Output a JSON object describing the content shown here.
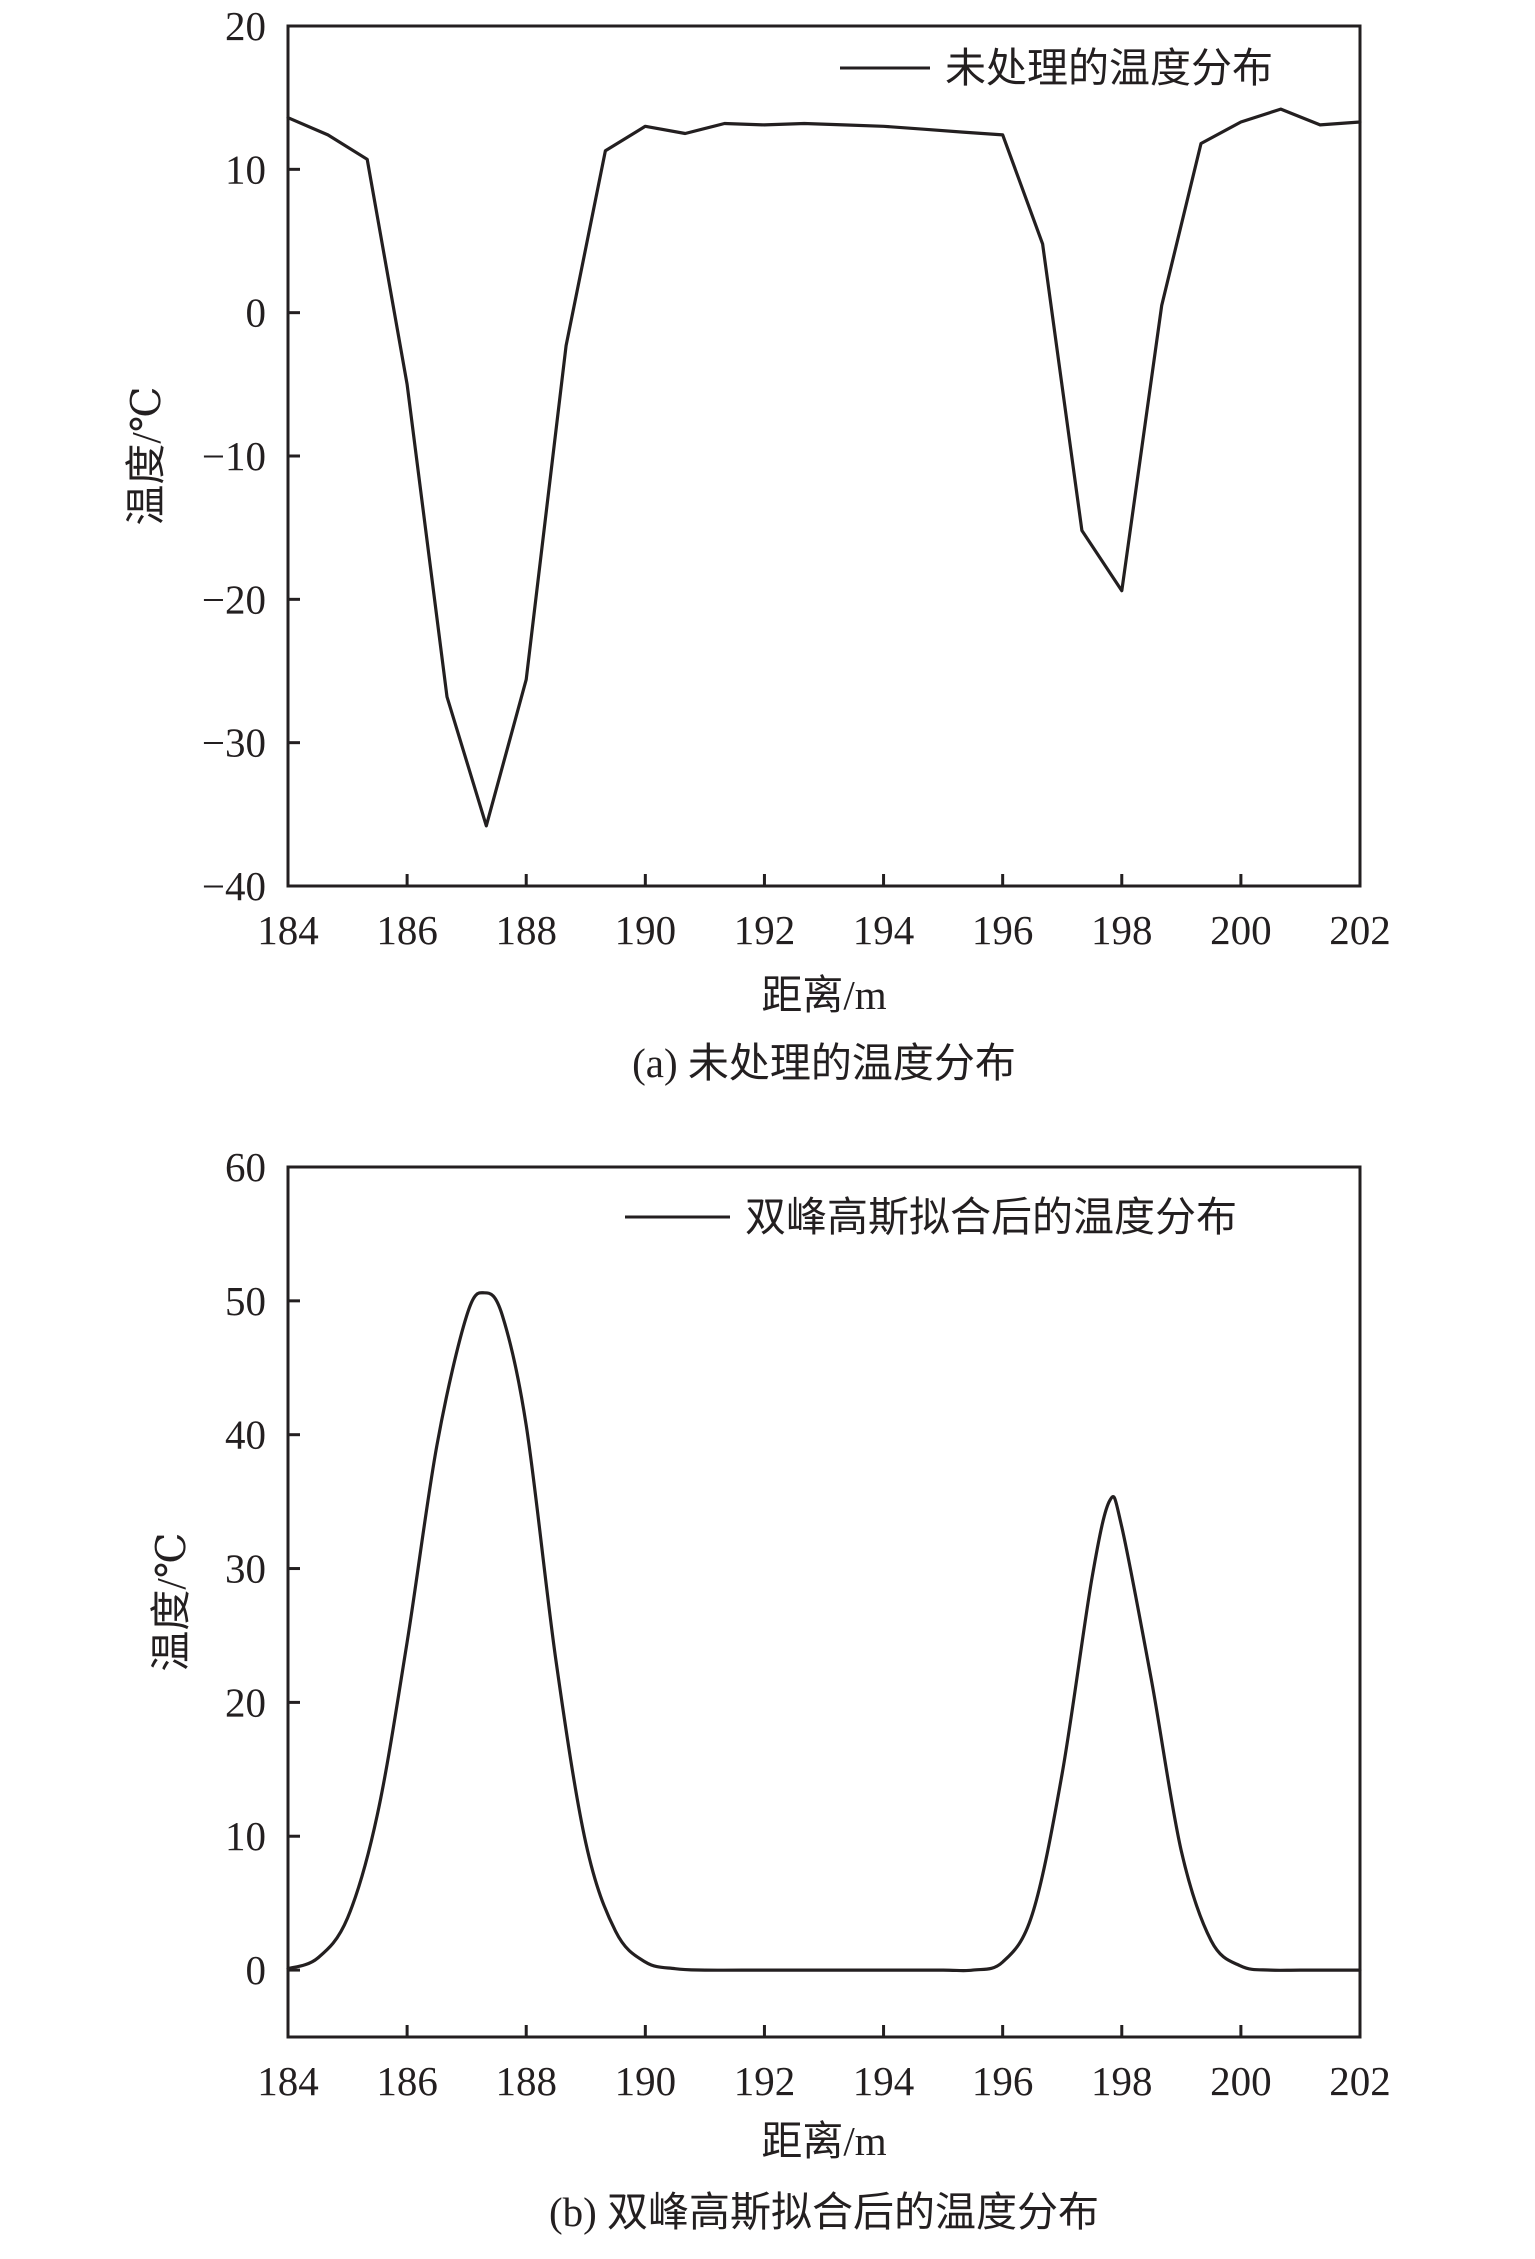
{
  "chart_data": [
    {
      "id": "a",
      "type": "line",
      "caption": "(a) 未处理的温度分布",
      "xlabel": "距离/m",
      "ylabel": "温度/℃",
      "xlim": [
        184,
        202
      ],
      "ylim": [
        -40,
        20
      ],
      "xticks": [
        184,
        186,
        188,
        190,
        192,
        194,
        196,
        198,
        200,
        202
      ],
      "yticks": [
        -40,
        -30,
        -20,
        -10,
        0,
        10,
        20
      ],
      "ytick_labels": [
        "−40",
        "−30",
        "−20",
        "−10",
        "0",
        "10",
        "20"
      ],
      "legend_position": "top-right",
      "grid": false,
      "series": [
        {
          "name": "未处理的温度分布",
          "x": [
            184.0,
            184.67,
            185.33,
            186.0,
            186.67,
            187.33,
            188.0,
            188.67,
            189.33,
            190.0,
            190.67,
            191.33,
            192.0,
            192.67,
            193.33,
            194.0,
            194.67,
            195.33,
            196.0,
            196.67,
            197.33,
            198.0,
            198.67,
            199.33,
            200.0,
            200.67,
            201.33,
            202.0
          ],
          "y": [
            13.6,
            12.4,
            10.7,
            -5.0,
            -26.8,
            -35.8,
            -25.6,
            -2.3,
            11.3,
            13.0,
            12.5,
            13.2,
            13.1,
            13.2,
            13.1,
            13.0,
            12.8,
            12.6,
            12.4,
            4.8,
            -15.2,
            -19.4,
            0.5,
            11.8,
            13.3,
            14.2,
            13.1,
            13.3
          ]
        }
      ]
    },
    {
      "id": "b",
      "type": "line",
      "caption": "(b) 双峰高斯拟合后的温度分布",
      "xlabel": "距离/m",
      "ylabel": "温度/℃",
      "xlim": [
        184,
        202
      ],
      "ylim": [
        -5,
        60
      ],
      "xticks": [
        184,
        186,
        188,
        190,
        192,
        194,
        196,
        198,
        200,
        202
      ],
      "yticks": [
        0,
        10,
        20,
        30,
        40,
        50,
        60
      ],
      "ytick_labels": [
        "0",
        "10",
        "20",
        "30",
        "40",
        "50",
        "60"
      ],
      "legend_position": "top-right",
      "grid": false,
      "series": [
        {
          "name": "双峰高斯拟合后的温度分布",
          "x": [
            184.0,
            184.5,
            185.0,
            185.5,
            186.0,
            186.5,
            187.0,
            187.3,
            187.6,
            188.0,
            188.5,
            189.0,
            189.5,
            190.0,
            190.5,
            191.0,
            192.0,
            193.0,
            194.0,
            195.0,
            195.5,
            196.0,
            196.5,
            197.0,
            197.5,
            197.8,
            198.0,
            198.5,
            199.0,
            199.5,
            200.0,
            200.5,
            201.0,
            202.0
          ],
          "y": [
            0.1,
            0.9,
            3.9,
            11.6,
            24.5,
            39.2,
            48.9,
            50.6,
            48.9,
            40.7,
            23.1,
            9.5,
            2.9,
            0.6,
            0.1,
            0.0,
            0.0,
            0.0,
            0.0,
            0.0,
            0.0,
            0.6,
            4.2,
            14.7,
            29.3,
            35.1,
            33.1,
            21.6,
            8.9,
            2.2,
            0.3,
            0.0,
            0.0,
            0.0
          ]
        }
      ]
    }
  ]
}
